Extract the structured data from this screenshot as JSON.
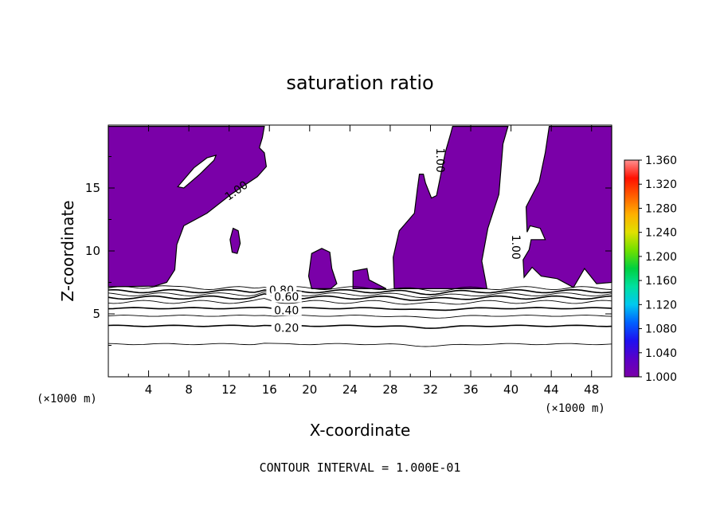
{
  "chart_data": {
    "type": "contour",
    "title": "saturation ratio",
    "xlabel": "X-coordinate",
    "ylabel": "Z-coordinate",
    "x_unit": "(×1000 m)",
    "x_unit_right": "(×1000 m)",
    "xlim": [
      0,
      50
    ],
    "ylim": [
      0,
      20
    ],
    "x_ticks": [
      4,
      8,
      12,
      16,
      20,
      24,
      28,
      32,
      36,
      40,
      44,
      48
    ],
    "y_ticks": [
      5,
      10,
      15
    ],
    "contour_interval_text": "CONTOUR INTERVAL = 1.000E-01",
    "contour_labels": [
      {
        "text": "0.80",
        "x": 17.2,
        "z": 6.9
      },
      {
        "text": "0.60",
        "x": 17.7,
        "z": 6.35
      },
      {
        "text": "0.40",
        "x": 17.7,
        "z": 5.3
      },
      {
        "text": "0.20",
        "x": 17.7,
        "z": 3.9
      },
      {
        "text": "1.00",
        "x": 12.7,
        "z": 14.8,
        "rotate": -35
      },
      {
        "text": "1.00",
        "x": 33.0,
        "z": 17.2,
        "rotate": 90
      },
      {
        "text": "1.00",
        "x": 40.5,
        "z": 10.3,
        "rotate": 90
      }
    ],
    "horizontal_contours": [
      {
        "level": 0.9,
        "z": 7.05
      },
      {
        "level": 0.8,
        "z": 6.8
      },
      {
        "level": 0.7,
        "z": 6.55
      },
      {
        "level": 0.6,
        "z": 6.3
      },
      {
        "level": 0.5,
        "z": 5.95
      },
      {
        "level": 0.4,
        "z": 5.45
      },
      {
        "level": 0.3,
        "z": 4.85
      },
      {
        "level": 0.2,
        "z": 4.05
      },
      {
        "level": 0.1,
        "z": 2.6
      }
    ],
    "supersaturated_regions": [
      [
        [
          0,
          19.9
        ],
        [
          15.5,
          19.9
        ],
        [
          15.3,
          19.0
        ],
        [
          15.0,
          18.2
        ],
        [
          15.5,
          17.8
        ],
        [
          15.7,
          16.7
        ],
        [
          14.8,
          15.9
        ],
        [
          12.2,
          14.5
        ],
        [
          9.8,
          13.0
        ],
        [
          7.5,
          12.0
        ],
        [
          6.8,
          10.5
        ],
        [
          6.6,
          8.5
        ],
        [
          5.8,
          7.5
        ],
        [
          4.6,
          7.2
        ],
        [
          0,
          7.15
        ]
      ],
      [
        [
          12.4,
          11.8
        ],
        [
          12.9,
          11.6
        ],
        [
          13.1,
          10.6
        ],
        [
          12.8,
          9.8
        ],
        [
          12.3,
          9.9
        ],
        [
          12.1,
          10.9
        ]
      ],
      [
        [
          20.2,
          9.8
        ],
        [
          21.2,
          10.2
        ],
        [
          22.0,
          9.9
        ],
        [
          22.2,
          8.6
        ],
        [
          22.7,
          7.4
        ],
        [
          22.1,
          7.0
        ],
        [
          20.2,
          7.0
        ],
        [
          19.9,
          8.0
        ]
      ],
      [
        [
          24.3,
          8.4
        ],
        [
          25.7,
          8.6
        ],
        [
          25.9,
          7.7
        ],
        [
          27.6,
          7.0
        ],
        [
          24.3,
          7.0
        ]
      ],
      [
        [
          28.4,
          7.0
        ],
        [
          28.3,
          9.5
        ],
        [
          28.9,
          11.6
        ],
        [
          30.4,
          13.0
        ],
        [
          30.7,
          14.9
        ],
        [
          30.9,
          16.1
        ],
        [
          31.3,
          16.1
        ],
        [
          31.5,
          15.4
        ],
        [
          32.1,
          14.2
        ],
        [
          32.6,
          14.4
        ],
        [
          33.5,
          17.9
        ],
        [
          34.0,
          19.3
        ],
        [
          34.2,
          19.9
        ],
        [
          39.7,
          19.9
        ],
        [
          39.2,
          18.5
        ],
        [
          38.8,
          14.5
        ],
        [
          37.7,
          11.8
        ],
        [
          37.1,
          9.2
        ],
        [
          37.5,
          7.5
        ],
        [
          37.6,
          7.0
        ]
      ],
      [
        [
          43.8,
          19.9
        ],
        [
          50,
          19.9
        ],
        [
          50,
          7.5
        ],
        [
          48.5,
          7.4
        ],
        [
          47.3,
          8.6
        ],
        [
          46.2,
          7.1
        ],
        [
          44.6,
          7.8
        ],
        [
          43.0,
          8.0
        ],
        [
          42.1,
          8.7
        ],
        [
          41.3,
          7.9
        ],
        [
          41.2,
          9.3
        ],
        [
          41.8,
          10.1
        ],
        [
          42.0,
          10.9
        ],
        [
          43.4,
          10.9
        ],
        [
          42.9,
          11.8
        ],
        [
          41.9,
          12.0
        ],
        [
          41.6,
          11.5
        ],
        [
          41.5,
          13.5
        ],
        [
          42.8,
          15.5
        ],
        [
          43.4,
          17.8
        ]
      ]
    ],
    "subsaturated_holes": [
      [
        [
          6.9,
          15.1
        ],
        [
          8.5,
          16.6
        ],
        [
          9.8,
          17.4
        ],
        [
          10.7,
          17.6
        ],
        [
          10.5,
          17.2
        ],
        [
          9.1,
          16.1
        ],
        [
          7.5,
          15.0
        ]
      ]
    ],
    "colorbar": {
      "min": 1.0,
      "max": 1.36,
      "labels": [
        "1.360",
        "1.320",
        "1.280",
        "1.240",
        "1.200",
        "1.160",
        "1.120",
        "1.080",
        "1.040",
        "1.000"
      ],
      "colors": [
        "#7b00a8",
        "#5a00c8",
        "#1e10f0",
        "#0060ff",
        "#00c8f0",
        "#00e0a0",
        "#00d040",
        "#70e000",
        "#e0e000",
        "#ffb000",
        "#ff6000",
        "#ff1000",
        "#ff9090"
      ]
    },
    "fill_color": "#7a00a8",
    "grid": false,
    "legend": "right"
  }
}
